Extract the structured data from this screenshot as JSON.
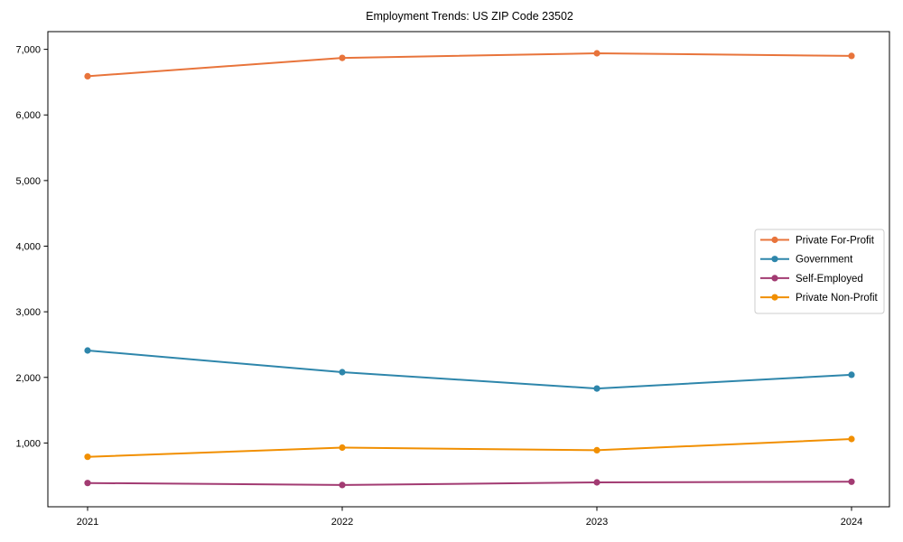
{
  "page": {
    "title": "Employment Trends: US ZIP Code 23502"
  },
  "chart_data": {
    "type": "line",
    "title": "Employment Trends: US ZIP Code 23502",
    "xlabel": "",
    "ylabel": "",
    "grid": false,
    "legend_position": "center right",
    "x_tick_labels": [
      "2021",
      "2022",
      "2023",
      "2024"
    ],
    "x": [
      2021,
      2022,
      2023,
      2024
    ],
    "ylim": [
      28,
      7270
    ],
    "yticks": [
      {
        "value": 1000,
        "label": "1,000"
      },
      {
        "value": 2000,
        "label": "2,000"
      },
      {
        "value": 3000,
        "label": "3,000"
      },
      {
        "value": 4000,
        "label": "4,000"
      },
      {
        "value": 5000,
        "label": "5,000"
      },
      {
        "value": 6000,
        "label": "6,000"
      },
      {
        "value": 7000,
        "label": "7,000"
      }
    ],
    "series": [
      {
        "name": "Private For-Profit",
        "color": "#E8743B",
        "values": [
          6590,
          6870,
          6940,
          6900
        ]
      },
      {
        "name": "Government",
        "color": "#2E86AB",
        "values": [
          2410,
          2080,
          1830,
          2040
        ]
      },
      {
        "name": "Self-Employed",
        "color": "#A23B72",
        "values": [
          390,
          360,
          400,
          410
        ]
      },
      {
        "name": "Private Non-Profit",
        "color": "#F18F01",
        "values": [
          790,
          930,
          890,
          1060
        ]
      }
    ]
  }
}
